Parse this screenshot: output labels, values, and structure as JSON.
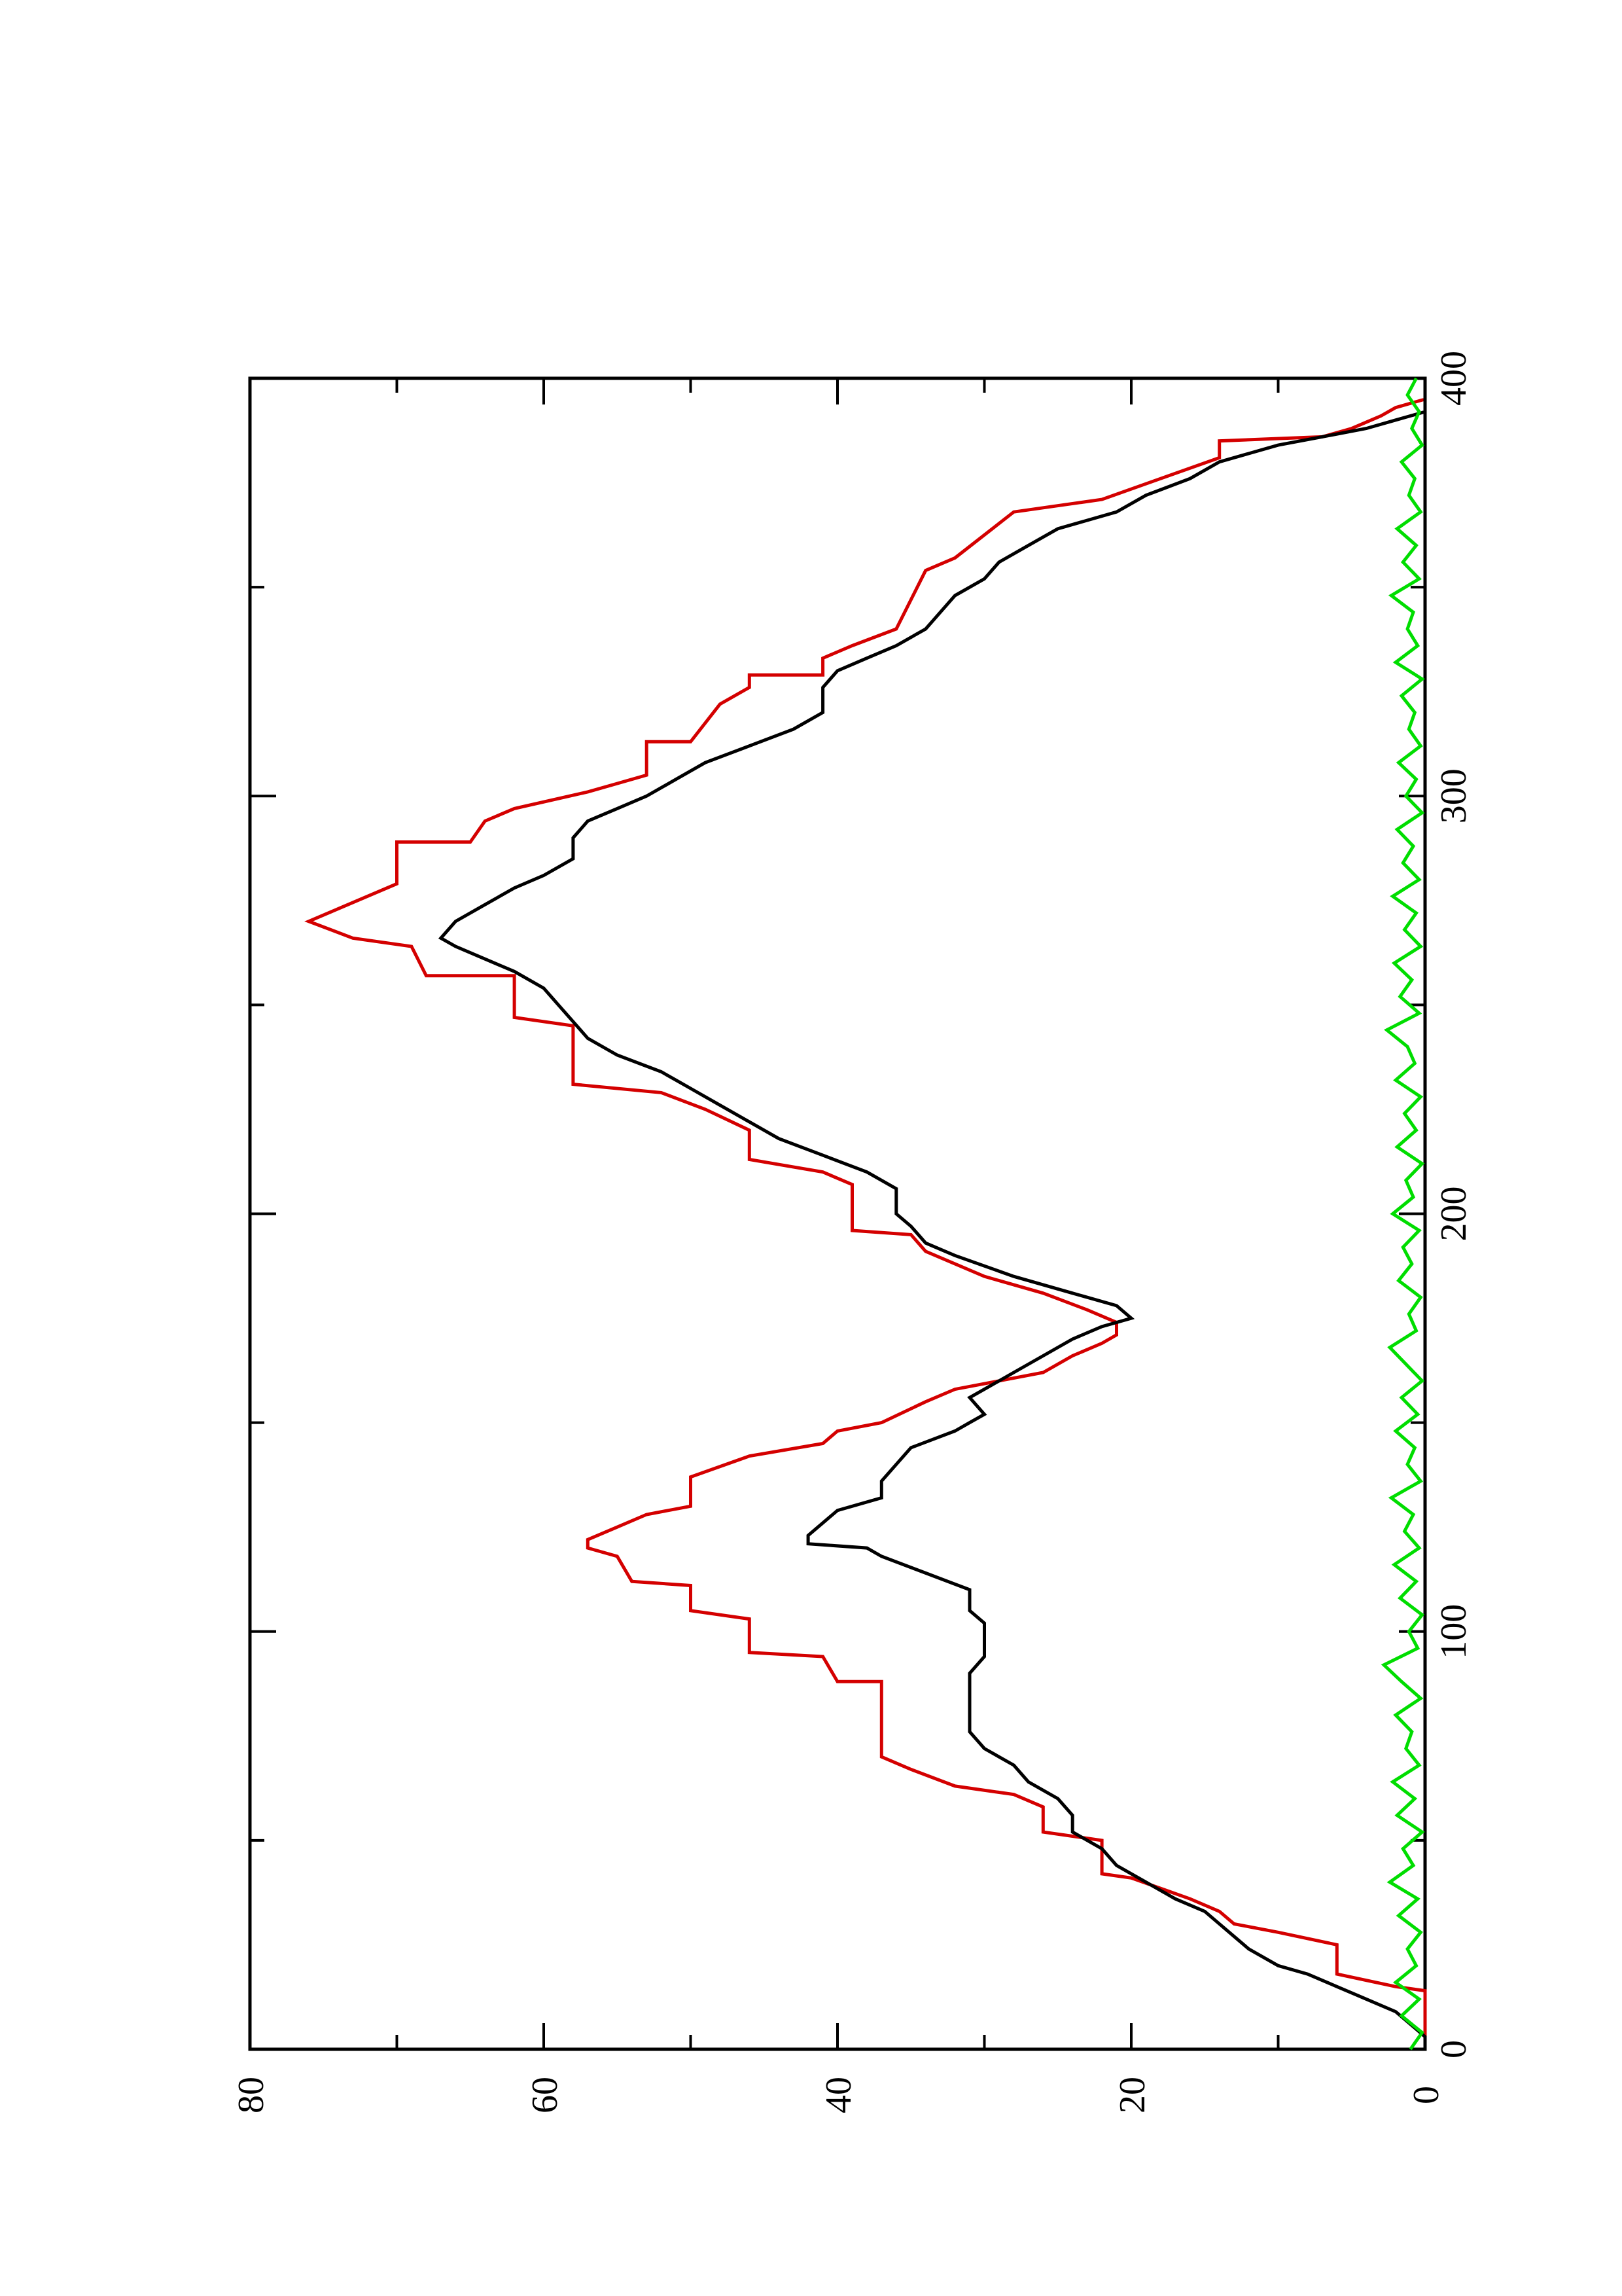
{
  "chart_data": {
    "type": "line",
    "orientation": "rotated-90-ccw",
    "title": "",
    "xlabel": "",
    "ylabel": "",
    "xlim": [
      0,
      400
    ],
    "ylim": [
      0,
      80
    ],
    "x_ticks": [
      0,
      100,
      200,
      300,
      400
    ],
    "y_ticks": [
      0,
      20,
      40,
      60,
      80
    ],
    "grid": false,
    "legend": "none",
    "series": [
      {
        "color": "#d40000",
        "style": "step",
        "points": [
          [
            0,
            0
          ],
          [
            14,
            0
          ],
          [
            15,
            2
          ],
          [
            18,
            6
          ],
          [
            25,
            6
          ],
          [
            28,
            10
          ],
          [
            30,
            13
          ],
          [
            33,
            14
          ],
          [
            36,
            16
          ],
          [
            41,
            20
          ],
          [
            42,
            22
          ],
          [
            50,
            22
          ],
          [
            52,
            26
          ],
          [
            58,
            26
          ],
          [
            61,
            28
          ],
          [
            63,
            32
          ],
          [
            67,
            35
          ],
          [
            70,
            37
          ],
          [
            88,
            37
          ],
          [
            88,
            40
          ],
          [
            94,
            41
          ],
          [
            95,
            46
          ],
          [
            103,
            46
          ],
          [
            105,
            50
          ],
          [
            111,
            50
          ],
          [
            112,
            54
          ],
          [
            118,
            55
          ],
          [
            120,
            57
          ],
          [
            122,
            57
          ],
          [
            125,
            55
          ],
          [
            128,
            53
          ],
          [
            130,
            50
          ],
          [
            137,
            50
          ],
          [
            142,
            46
          ],
          [
            145,
            41
          ],
          [
            148,
            40
          ],
          [
            150,
            37
          ],
          [
            155,
            34
          ],
          [
            158,
            32
          ],
          [
            162,
            26
          ],
          [
            166,
            24
          ],
          [
            169,
            22
          ],
          [
            171,
            21
          ],
          [
            174,
            21
          ],
          [
            177,
            23
          ],
          [
            181,
            26
          ],
          [
            185,
            30
          ],
          [
            191,
            34
          ],
          [
            195,
            35
          ],
          [
            196,
            39
          ],
          [
            207,
            39
          ],
          [
            210,
            41
          ],
          [
            213,
            46
          ],
          [
            220,
            46
          ],
          [
            225,
            49
          ],
          [
            229,
            52
          ],
          [
            231,
            58
          ],
          [
            245,
            58
          ],
          [
            247,
            62
          ],
          [
            257,
            62
          ],
          [
            257,
            68
          ],
          [
            264,
            69
          ],
          [
            266,
            73
          ],
          [
            270,
            76
          ],
          [
            273,
            74
          ],
          [
            276,
            72
          ],
          [
            279,
            70
          ],
          [
            289,
            70
          ],
          [
            289,
            65
          ],
          [
            294,
            64
          ],
          [
            297,
            62
          ],
          [
            301,
            57
          ],
          [
            303,
            55
          ],
          [
            305,
            53
          ],
          [
            313,
            53
          ],
          [
            313,
            50
          ],
          [
            322,
            48
          ],
          [
            326,
            46
          ],
          [
            329,
            46
          ],
          [
            329,
            41
          ],
          [
            333,
            41
          ],
          [
            336,
            39
          ],
          [
            340,
            36
          ],
          [
            347,
            35
          ],
          [
            354,
            34
          ],
          [
            357,
            32
          ],
          [
            368,
            28
          ],
          [
            371,
            22
          ],
          [
            376,
            18
          ],
          [
            381,
            14
          ],
          [
            385,
            14
          ],
          [
            386,
            7
          ],
          [
            388,
            5
          ],
          [
            391,
            3
          ],
          [
            393,
            2
          ],
          [
            395,
            0
          ],
          [
            400,
            0
          ]
        ]
      },
      {
        "color": "#000000",
        "style": "line",
        "points": [
          [
            0,
            0
          ],
          [
            3,
            0
          ],
          [
            6,
            1
          ],
          [
            9,
            2
          ],
          [
            12,
            4
          ],
          [
            15,
            6
          ],
          [
            18,
            8
          ],
          [
            20,
            10
          ],
          [
            24,
            12
          ],
          [
            27,
            13
          ],
          [
            30,
            14
          ],
          [
            33,
            15
          ],
          [
            36,
            17
          ],
          [
            40,
            19
          ],
          [
            44,
            21
          ],
          [
            48,
            22
          ],
          [
            52,
            24
          ],
          [
            56,
            24
          ],
          [
            60,
            25
          ],
          [
            64,
            27
          ],
          [
            68,
            28
          ],
          [
            72,
            30
          ],
          [
            76,
            31
          ],
          [
            80,
            31
          ],
          [
            86,
            31
          ],
          [
            90,
            31
          ],
          [
            94,
            30
          ],
          [
            98,
            30
          ],
          [
            102,
            30
          ],
          [
            105,
            31
          ],
          [
            110,
            31
          ],
          [
            114,
            34
          ],
          [
            118,
            37
          ],
          [
            120,
            38
          ],
          [
            121,
            42
          ],
          [
            123,
            42
          ],
          [
            126,
            41
          ],
          [
            129,
            40
          ],
          [
            132,
            37
          ],
          [
            136,
            37
          ],
          [
            140,
            36
          ],
          [
            144,
            35
          ],
          [
            148,
            32
          ],
          [
            150,
            31
          ],
          [
            152,
            30
          ],
          [
            156,
            31
          ],
          [
            158,
            30
          ],
          [
            162,
            28
          ],
          [
            166,
            26
          ],
          [
            170,
            24
          ],
          [
            173,
            22
          ],
          [
            175,
            20
          ],
          [
            178,
            21
          ],
          [
            181,
            24
          ],
          [
            185,
            28
          ],
          [
            190,
            32
          ],
          [
            193,
            34
          ],
          [
            197,
            35
          ],
          [
            200,
            36
          ],
          [
            206,
            36
          ],
          [
            210,
            38
          ],
          [
            214,
            41
          ],
          [
            218,
            44
          ],
          [
            222,
            46
          ],
          [
            226,
            48
          ],
          [
            230,
            50
          ],
          [
            234,
            52
          ],
          [
            238,
            55
          ],
          [
            242,
            57
          ],
          [
            246,
            58
          ],
          [
            250,
            59
          ],
          [
            254,
            60
          ],
          [
            258,
            62
          ],
          [
            261,
            64
          ],
          [
            264,
            66
          ],
          [
            266,
            67
          ],
          [
            270,
            66
          ],
          [
            274,
            64
          ],
          [
            278,
            62
          ],
          [
            281,
            60
          ],
          [
            285,
            58
          ],
          [
            290,
            58
          ],
          [
            294,
            57
          ],
          [
            297,
            55
          ],
          [
            300,
            53
          ],
          [
            304,
            51
          ],
          [
            308,
            49
          ],
          [
            312,
            46
          ],
          [
            316,
            43
          ],
          [
            320,
            41
          ],
          [
            326,
            41
          ],
          [
            330,
            40
          ],
          [
            333,
            38
          ],
          [
            336,
            36
          ],
          [
            340,
            34
          ],
          [
            344,
            33
          ],
          [
            348,
            32
          ],
          [
            352,
            30
          ],
          [
            356,
            29
          ],
          [
            360,
            27
          ],
          [
            364,
            25
          ],
          [
            368,
            21
          ],
          [
            372,
            19
          ],
          [
            376,
            16
          ],
          [
            380,
            14
          ],
          [
            384,
            10
          ],
          [
            386,
            7
          ],
          [
            388,
            4
          ],
          [
            390,
            2
          ],
          [
            392,
            0
          ],
          [
            395,
            0
          ],
          [
            400,
            0
          ]
        ]
      },
      {
        "color": "#00dd00",
        "style": "line",
        "noise": true,
        "points": [
          [
            0,
            1.0
          ],
          [
            4,
            0.2
          ],
          [
            8,
            1.6
          ],
          [
            12,
            0.4
          ],
          [
            16,
            2.0
          ],
          [
            20,
            0.6
          ],
          [
            24,
            1.2
          ],
          [
            28,
            0.3
          ],
          [
            32,
            1.8
          ],
          [
            36,
            0.5
          ],
          [
            40,
            2.4
          ],
          [
            44,
            0.8
          ],
          [
            48,
            1.5
          ],
          [
            52,
            0.2
          ],
          [
            56,
            1.9
          ],
          [
            60,
            0.7
          ],
          [
            64,
            2.2
          ],
          [
            68,
            0.4
          ],
          [
            72,
            1.3
          ],
          [
            76,
            0.9
          ],
          [
            80,
            2.0
          ],
          [
            84,
            0.3
          ],
          [
            88,
            1.6
          ],
          [
            92,
            2.8
          ],
          [
            96,
            0.5
          ],
          [
            100,
            1.1
          ],
          [
            104,
            0.2
          ],
          [
            108,
            1.7
          ],
          [
            112,
            0.6
          ],
          [
            116,
            2.1
          ],
          [
            120,
            0.4
          ],
          [
            124,
            1.4
          ],
          [
            128,
            0.8
          ],
          [
            132,
            2.3
          ],
          [
            136,
            0.3
          ],
          [
            140,
            1.2
          ],
          [
            144,
            0.7
          ],
          [
            148,
            2.0
          ],
          [
            152,
            0.5
          ],
          [
            156,
            1.6
          ],
          [
            160,
            0.2
          ],
          [
            164,
            1.3
          ],
          [
            168,
            2.4
          ],
          [
            172,
            0.6
          ],
          [
            176,
            1.1
          ],
          [
            180,
            0.3
          ],
          [
            184,
            1.8
          ],
          [
            188,
            0.9
          ],
          [
            192,
            1.5
          ],
          [
            196,
            0.4
          ],
          [
            200,
            2.2
          ],
          [
            204,
            0.8
          ],
          [
            208,
            1.3
          ],
          [
            212,
            0.2
          ],
          [
            216,
            1.9
          ],
          [
            220,
            0.6
          ],
          [
            224,
            1.4
          ],
          [
            228,
            0.3
          ],
          [
            232,
            2.0
          ],
          [
            236,
            0.7
          ],
          [
            240,
            1.2
          ],
          [
            244,
            2.6
          ],
          [
            248,
            0.4
          ],
          [
            252,
            1.7
          ],
          [
            256,
            0.9
          ],
          [
            260,
            2.1
          ],
          [
            264,
            0.3
          ],
          [
            268,
            1.4
          ],
          [
            272,
            0.6
          ],
          [
            276,
            2.2
          ],
          [
            280,
            0.4
          ],
          [
            284,
            1.5
          ],
          [
            288,
            0.8
          ],
          [
            292,
            1.9
          ],
          [
            296,
            0.2
          ],
          [
            300,
            1.3
          ],
          [
            304,
            0.6
          ],
          [
            308,
            1.8
          ],
          [
            312,
            0.3
          ],
          [
            316,
            1.1
          ],
          [
            320,
            0.7
          ],
          [
            324,
            1.6
          ],
          [
            328,
            0.2
          ],
          [
            332,
            2.0
          ],
          [
            336,
            0.5
          ],
          [
            340,
            1.2
          ],
          [
            344,
            0.8
          ],
          [
            348,
            2.3
          ],
          [
            352,
            0.4
          ],
          [
            356,
            1.5
          ],
          [
            360,
            0.6
          ],
          [
            364,
            1.9
          ],
          [
            368,
            0.3
          ],
          [
            372,
            1.1
          ],
          [
            376,
            0.7
          ],
          [
            380,
            1.6
          ],
          [
            384,
            0.2
          ],
          [
            388,
            0.9
          ],
          [
            392,
            0.4
          ],
          [
            396,
            1.2
          ],
          [
            400,
            0.6
          ]
        ]
      }
    ]
  }
}
